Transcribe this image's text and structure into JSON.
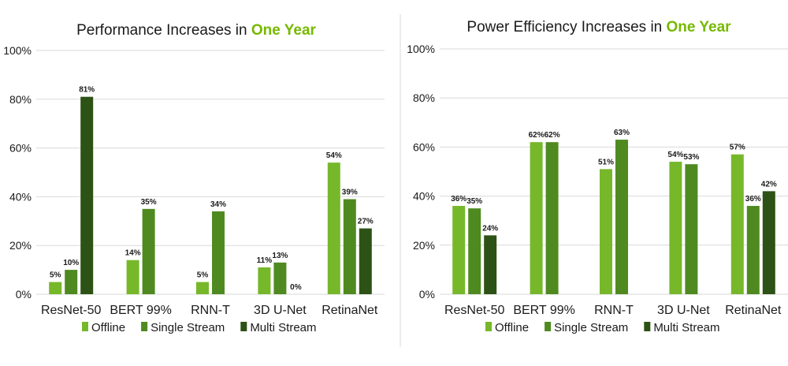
{
  "colors": {
    "offline": "#76b82a",
    "single_stream": "#4f8a21",
    "multi_stream": "#2d5216",
    "accent": "#76b900",
    "grid": "#d9d9d9",
    "divider": "#d9d9d9",
    "text": "#1a1a1a"
  },
  "chart_data": [
    {
      "type": "bar",
      "title": "Performance Increases in",
      "title_highlight": "One Year",
      "ylim": [
        0,
        100
      ],
      "yticks": [
        "0%",
        "20%",
        "40%",
        "60%",
        "80%",
        "100%"
      ],
      "y_unit": "%",
      "categories": [
        "ResNet-50",
        "BERT 99%",
        "RNN-T",
        "3D U-Net",
        "RetinaNet"
      ],
      "series": [
        {
          "name": "Offline",
          "values": [
            5,
            14,
            5,
            11,
            54
          ],
          "labels": [
            "5%",
            "14%",
            "5%",
            "11%",
            "54%"
          ]
        },
        {
          "name": "Single Stream",
          "values": [
            10,
            35,
            34,
            13,
            39
          ],
          "labels": [
            "10%",
            "35%",
            "34%",
            "13%",
            "39%"
          ]
        },
        {
          "name": "Multi Stream",
          "values": [
            81,
            null,
            null,
            0,
            27
          ],
          "labels": [
            "81%",
            null,
            null,
            "0%",
            "27%"
          ]
        }
      ],
      "legend": "bottom",
      "grid": true
    },
    {
      "type": "bar",
      "title": "Power Efficiency Increases in",
      "title_highlight": "One Year",
      "ylim": [
        0,
        100
      ],
      "yticks": [
        "0%",
        "20%",
        "40%",
        "60%",
        "80%",
        "100%"
      ],
      "y_unit": "%",
      "categories": [
        "ResNet-50",
        "BERT 99%",
        "RNN-T",
        "3D U-Net",
        "RetinaNet"
      ],
      "series": [
        {
          "name": "Offline",
          "values": [
            36,
            62,
            51,
            54,
            57
          ],
          "labels": [
            "36%",
            "62%",
            "51%",
            "54%",
            "57%"
          ]
        },
        {
          "name": "Single Stream",
          "values": [
            35,
            62,
            63,
            53,
            36
          ],
          "labels": [
            "35%",
            "62%",
            "63%",
            "53%",
            "36%"
          ]
        },
        {
          "name": "Multi Stream",
          "values": [
            24,
            null,
            null,
            null,
            42
          ],
          "labels": [
            "24%",
            null,
            null,
            null,
            "42%"
          ]
        }
      ],
      "legend": "bottom",
      "grid": true
    }
  ]
}
